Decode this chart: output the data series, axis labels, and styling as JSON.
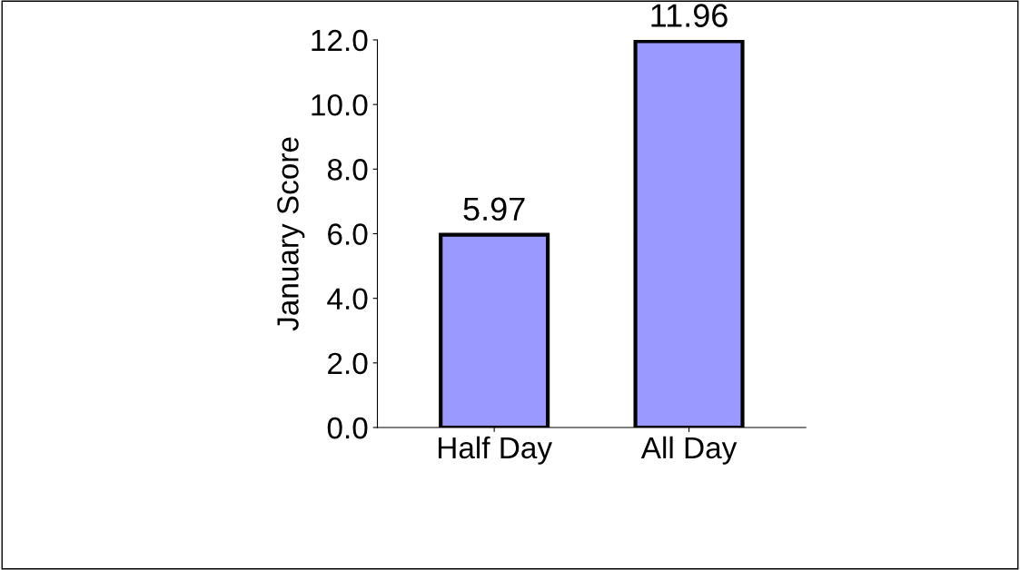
{
  "chart_data": {
    "type": "bar",
    "ylabel": "January Score",
    "categories": [
      "Half Day",
      "All Day"
    ],
    "values": [
      5.97,
      11.96
    ],
    "color": "#9999ff",
    "data_labels": true,
    "ylim": [
      0,
      12
    ],
    "yticks": [
      {
        "value": 0,
        "label": "0.0"
      },
      {
        "value": 2,
        "label": "2.0"
      },
      {
        "value": 4,
        "label": "4.0"
      },
      {
        "value": 6,
        "label": "6.0"
      },
      {
        "value": 8,
        "label": "8.0"
      },
      {
        "value": 10,
        "label": "10.0"
      },
      {
        "value": 12,
        "label": "12.0"
      }
    ],
    "grid": false,
    "legend": false
  }
}
